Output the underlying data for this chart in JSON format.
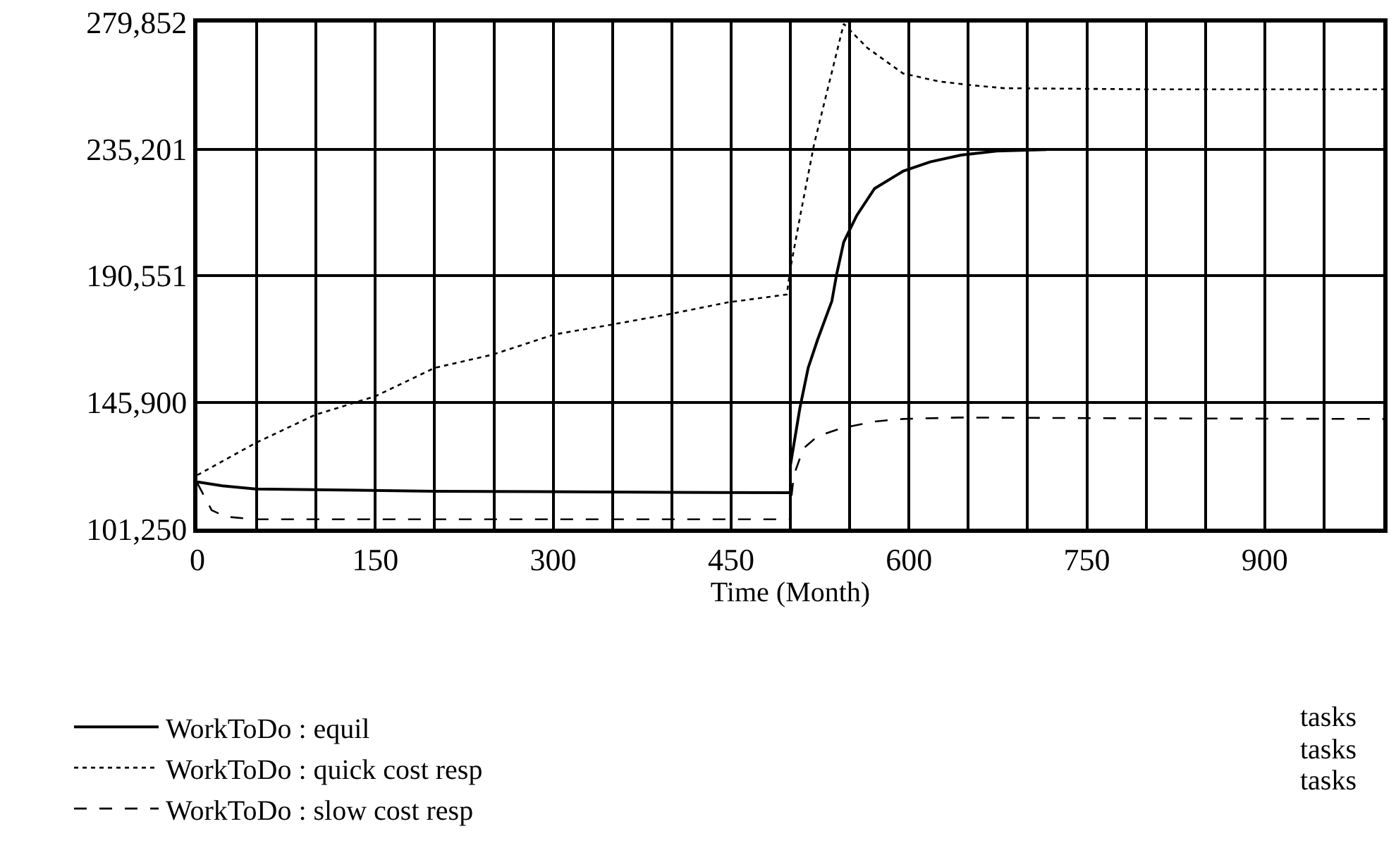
{
  "chart_data": {
    "type": "line",
    "xlabel": "Time (Month)",
    "xlim": [
      0,
      1000
    ],
    "xticks": [
      0,
      {
        "value": 50,
        "label": null
      },
      {
        "value": 100,
        "label": null
      },
      150,
      {
        "value": 200,
        "label": null
      },
      {
        "value": 250,
        "label": null
      },
      300,
      {
        "value": 350,
        "label": null
      },
      {
        "value": 400,
        "label": null
      },
      450,
      {
        "value": 500,
        "label": null
      },
      {
        "value": 550,
        "label": null
      },
      600,
      {
        "value": 650,
        "label": null
      },
      {
        "value": 700,
        "label": null
      },
      750,
      {
        "value": 800,
        "label": null
      },
      {
        "value": 850,
        "label": null
      },
      900,
      {
        "value": 950,
        "label": null
      }
    ],
    "ylim": [
      101250,
      279852
    ],
    "yticks": [
      {
        "value": 101250,
        "label": "101,250"
      },
      {
        "value": 145900,
        "label": "145,900"
      },
      {
        "value": 190551,
        "label": "190,551"
      },
      {
        "value": 235201,
        "label": "235,201"
      },
      {
        "value": 279852,
        "label": "279,852"
      }
    ],
    "grid": true,
    "legend": "bottom",
    "annotations": [
      "tasks",
      "tasks",
      "tasks"
    ],
    "series": [
      {
        "name": "WorkToDo : equil",
        "color": "#000000",
        "line_style": "solid",
        "x": [
          0,
          21,
          49,
          200,
          400,
          500,
          500,
          508,
          515,
          523,
          535,
          539,
          545,
          556,
          571,
          595,
          618,
          644,
          674,
          716
        ],
        "values": [
          117800,
          116400,
          115300,
          114500,
          114100,
          114000,
          123500,
          143800,
          158000,
          168000,
          181600,
          191000,
          202400,
          211800,
          221300,
          227400,
          230700,
          233100,
          234500,
          235000
        ]
      },
      {
        "name": "WorkToDo : quick cost resp",
        "color": "#000000",
        "line_style": "dotted",
        "x": [
          0,
          49,
          99,
          150,
          200,
          249,
          301,
          347,
          397,
          447,
          497,
          500,
          509,
          520,
          545,
          565,
          595,
          625,
          654,
          680,
          800,
          1000
        ],
        "values": [
          120200,
          131500,
          141400,
          148000,
          158000,
          162700,
          169800,
          173100,
          176900,
          181100,
          183900,
          193000,
          213200,
          236900,
          279400,
          270900,
          261900,
          259100,
          257700,
          256700,
          256300,
          256300
        ]
      },
      {
        "name": "WorkToDo : slow cost resp",
        "color": "#000000",
        "line_style": "dashed",
        "x": [
          0,
          12,
          24,
          49,
          200,
          400,
          500,
          500,
          503,
          511,
          523,
          543,
          571,
          595,
          642,
          800,
          1000
        ],
        "values": [
          117300,
          107800,
          105500,
          104600,
          104600,
          104600,
          104600,
          109300,
          120200,
          129600,
          133900,
          136700,
          139100,
          140000,
          140500,
          140200,
          140000
        ]
      }
    ]
  }
}
